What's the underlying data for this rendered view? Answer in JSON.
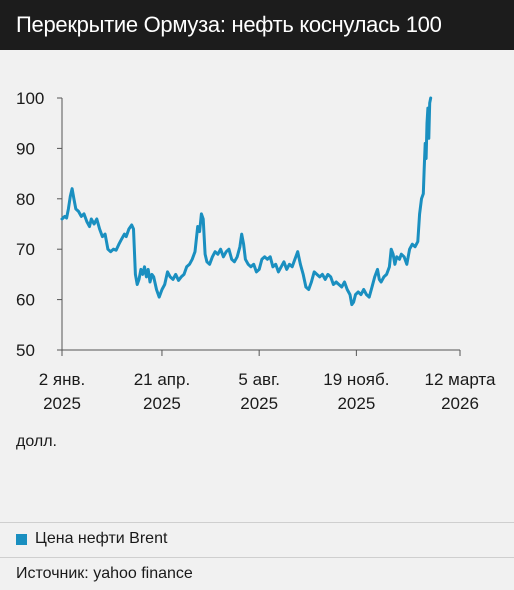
{
  "header": {
    "title": "Перекрытие Ормуза: нефть коснулась 100"
  },
  "unit_label": "долл.",
  "legend": {
    "label": "Цена нефти Brent"
  },
  "source": "Источник: yahoo finance",
  "colors": {
    "series": "#1a8fc0",
    "axis": "#555555",
    "grid": "#b5b5b5"
  },
  "chart_data": {
    "type": "line",
    "title": "Перекрытие Ормуза: нефть коснулась 100",
    "ylabel": "долл.",
    "xlabel": "",
    "ylim": [
      50,
      100
    ],
    "xlim": [
      0,
      434
    ],
    "yticks": [
      50,
      60,
      70,
      80,
      90,
      100
    ],
    "xticks": [
      {
        "x": 0,
        "line1": "2 янв.",
        "line2": "2025"
      },
      {
        "x": 109,
        "line1": "21 апр.",
        "line2": "2025"
      },
      {
        "x": 215,
        "line1": "5 авг.",
        "line2": "2025"
      },
      {
        "x": 321,
        "line1": "19 нояб.",
        "line2": "2025"
      },
      {
        "x": 434,
        "line1": "12 марта",
        "line2": "2026"
      }
    ],
    "series": [
      {
        "name": "Цена нефти Brent",
        "points": [
          [
            0,
            76
          ],
          [
            3,
            76.5
          ],
          [
            5,
            76.2
          ],
          [
            7,
            78
          ],
          [
            9,
            80.5
          ],
          [
            11,
            82
          ],
          [
            13,
            80
          ],
          [
            15,
            78
          ],
          [
            18,
            77.5
          ],
          [
            21,
            76.5
          ],
          [
            24,
            77
          ],
          [
            27,
            75.5
          ],
          [
            30,
            74.5
          ],
          [
            32,
            76
          ],
          [
            35,
            75
          ],
          [
            38,
            76
          ],
          [
            41,
            74
          ],
          [
            44,
            72.5
          ],
          [
            47,
            73
          ],
          [
            50,
            70
          ],
          [
            53,
            69.5
          ],
          [
            56,
            70
          ],
          [
            59,
            69.8
          ],
          [
            62,
            71
          ],
          [
            65,
            72
          ],
          [
            68,
            73
          ],
          [
            70,
            72.5
          ],
          [
            73,
            74
          ],
          [
            76,
            74.8
          ],
          [
            78,
            74
          ],
          [
            80,
            65
          ],
          [
            82,
            63
          ],
          [
            84,
            64
          ],
          [
            86,
            66
          ],
          [
            88,
            65
          ],
          [
            90,
            66.5
          ],
          [
            92,
            64.5
          ],
          [
            94,
            66
          ],
          [
            96,
            63.5
          ],
          [
            98,
            65
          ],
          [
            100,
            64.5
          ],
          [
            103,
            62
          ],
          [
            106,
            60.5
          ],
          [
            109,
            62
          ],
          [
            112,
            63
          ],
          [
            115,
            65.5
          ],
          [
            118,
            64.5
          ],
          [
            121,
            64
          ],
          [
            124,
            65
          ],
          [
            127,
            63.8
          ],
          [
            130,
            64.5
          ],
          [
            133,
            65
          ],
          [
            136,
            66.5
          ],
          [
            139,
            67
          ],
          [
            142,
            68
          ],
          [
            145,
            69.5
          ],
          [
            148,
            74.5
          ],
          [
            150,
            73.5
          ],
          [
            152,
            77
          ],
          [
            154,
            76
          ],
          [
            156,
            69
          ],
          [
            158,
            67.5
          ],
          [
            161,
            67
          ],
          [
            164,
            68.5
          ],
          [
            167,
            69.5
          ],
          [
            170,
            69
          ],
          [
            173,
            70
          ],
          [
            176,
            68.5
          ],
          [
            179,
            69.5
          ],
          [
            182,
            70
          ],
          [
            185,
            68
          ],
          [
            188,
            67.5
          ],
          [
            191,
            68.5
          ],
          [
            194,
            70.5
          ],
          [
            196,
            73
          ],
          [
            198,
            71
          ],
          [
            200,
            68
          ],
          [
            203,
            67
          ],
          [
            206,
            66.5
          ],
          [
            209,
            67
          ],
          [
            212,
            65.5
          ],
          [
            215,
            66
          ],
          [
            218,
            68
          ],
          [
            221,
            68.5
          ],
          [
            224,
            68
          ],
          [
            227,
            68.5
          ],
          [
            230,
            66.5
          ],
          [
            233,
            67
          ],
          [
            236,
            65.5
          ],
          [
            239,
            66.5
          ],
          [
            242,
            67.5
          ],
          [
            245,
            66
          ],
          [
            248,
            67
          ],
          [
            251,
            66.5
          ],
          [
            254,
            68
          ],
          [
            257,
            69.5
          ],
          [
            260,
            67
          ],
          [
            263,
            65
          ],
          [
            266,
            62.5
          ],
          [
            269,
            62
          ],
          [
            272,
            63.5
          ],
          [
            275,
            65.5
          ],
          [
            278,
            65
          ],
          [
            281,
            64.5
          ],
          [
            284,
            65
          ],
          [
            287,
            64
          ],
          [
            290,
            65
          ],
          [
            293,
            64.5
          ],
          [
            296,
            63
          ],
          [
            299,
            63.5
          ],
          [
            302,
            63
          ],
          [
            305,
            62.5
          ],
          [
            308,
            63.5
          ],
          [
            311,
            62
          ],
          [
            314,
            61
          ],
          [
            316,
            59
          ],
          [
            318,
            59.5
          ],
          [
            320,
            61
          ],
          [
            323,
            61.5
          ],
          [
            326,
            61
          ],
          [
            329,
            62
          ],
          [
            332,
            61
          ],
          [
            335,
            60.5
          ],
          [
            338,
            62.5
          ],
          [
            341,
            64.5
          ],
          [
            344,
            66
          ],
          [
            346,
            64
          ],
          [
            348,
            63.5
          ],
          [
            351,
            64.5
          ],
          [
            354,
            65
          ],
          [
            357,
            66.5
          ],
          [
            359,
            70
          ],
          [
            361,
            69
          ],
          [
            363,
            67
          ],
          [
            365,
            68.5
          ],
          [
            368,
            68
          ],
          [
            370,
            69
          ],
          [
            373,
            68.5
          ],
          [
            376,
            67
          ],
          [
            379,
            70
          ],
          [
            382,
            71
          ],
          [
            385,
            70.5
          ],
          [
            388,
            71.5
          ],
          [
            390,
            77
          ],
          [
            392,
            80
          ],
          [
            394,
            81
          ],
          [
            395,
            86
          ],
          [
            396,
            91
          ],
          [
            397,
            88
          ],
          [
            398,
            95
          ],
          [
            399,
            98
          ],
          [
            400,
            92
          ],
          [
            401,
            99
          ],
          [
            402,
            100
          ]
        ]
      }
    ],
    "grid": false,
    "legend_position": "bottom-left"
  }
}
